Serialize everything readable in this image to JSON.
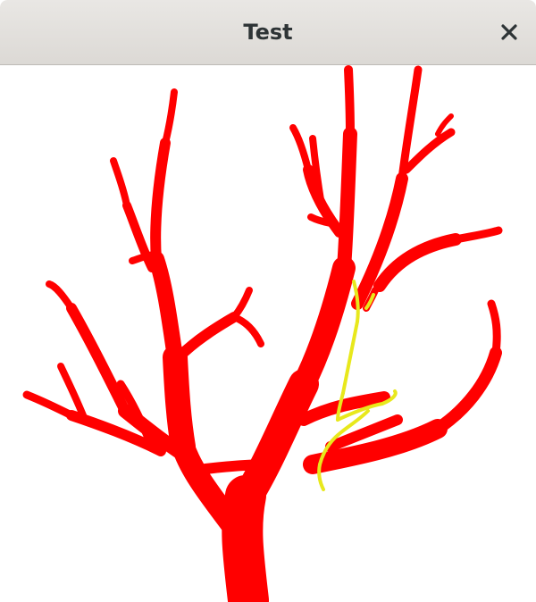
{
  "window": {
    "title": "Test",
    "close_icon": "close-icon"
  },
  "render": {
    "background": "#ffffff",
    "vessel_color": "#ff0000",
    "highlight_path_color": "#e8e81c"
  }
}
